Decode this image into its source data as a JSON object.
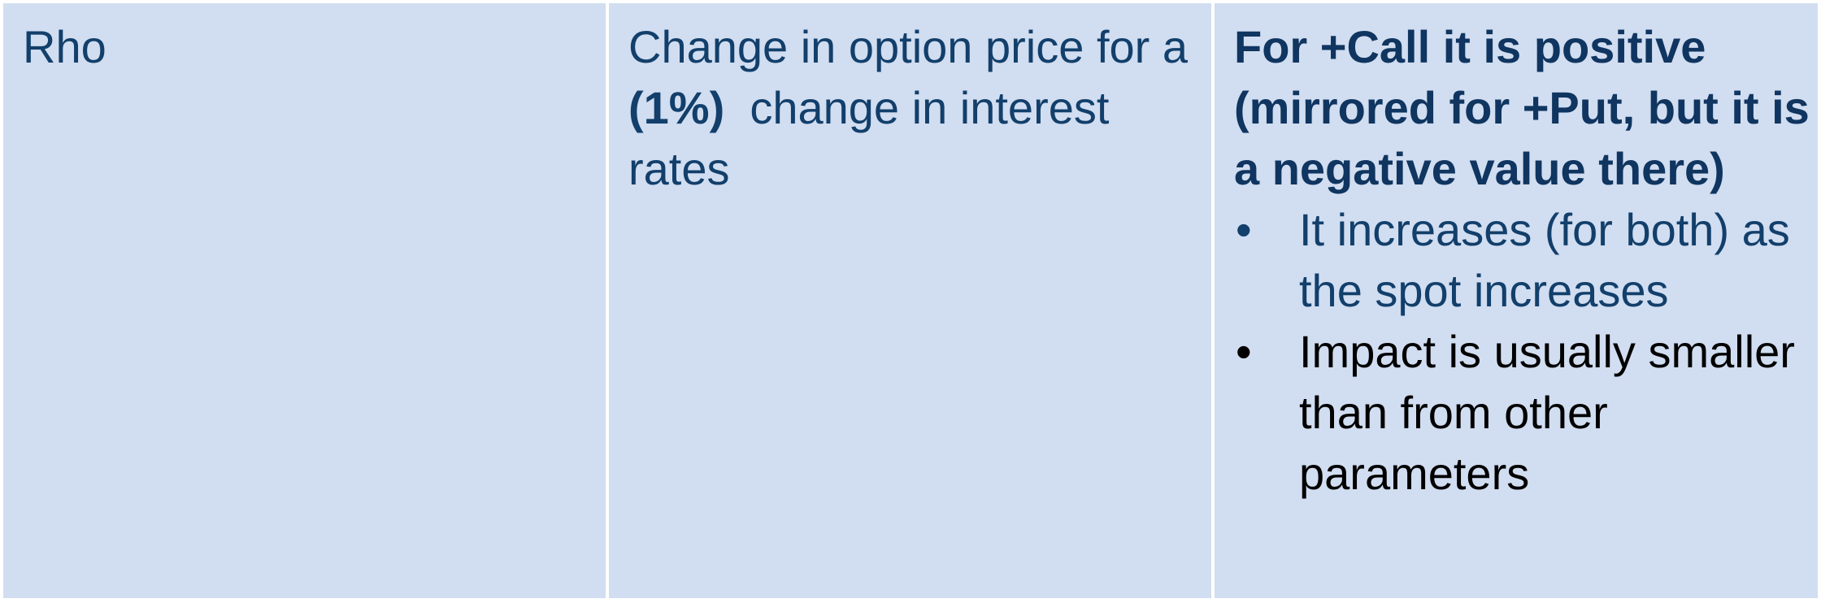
{
  "row": {
    "term": "Rho",
    "definition": {
      "part1": "Change in option price for a ",
      "bold": "(1%)",
      "part2": "  change in interest rates"
    },
    "notes": {
      "heading": "For +Call it is positive (mirrored for +Put, but it is a negative value there)",
      "bullet_glyph": "•",
      "bullets": [
        "It increases (for both) as the spot increases",
        "Impact is usually smaller than from other parameters"
      ]
    }
  },
  "colors": {
    "cell_background": "#d1ddf0",
    "text_blue": "#123f6b",
    "text_black": "#000000",
    "border": "#ffffff"
  }
}
